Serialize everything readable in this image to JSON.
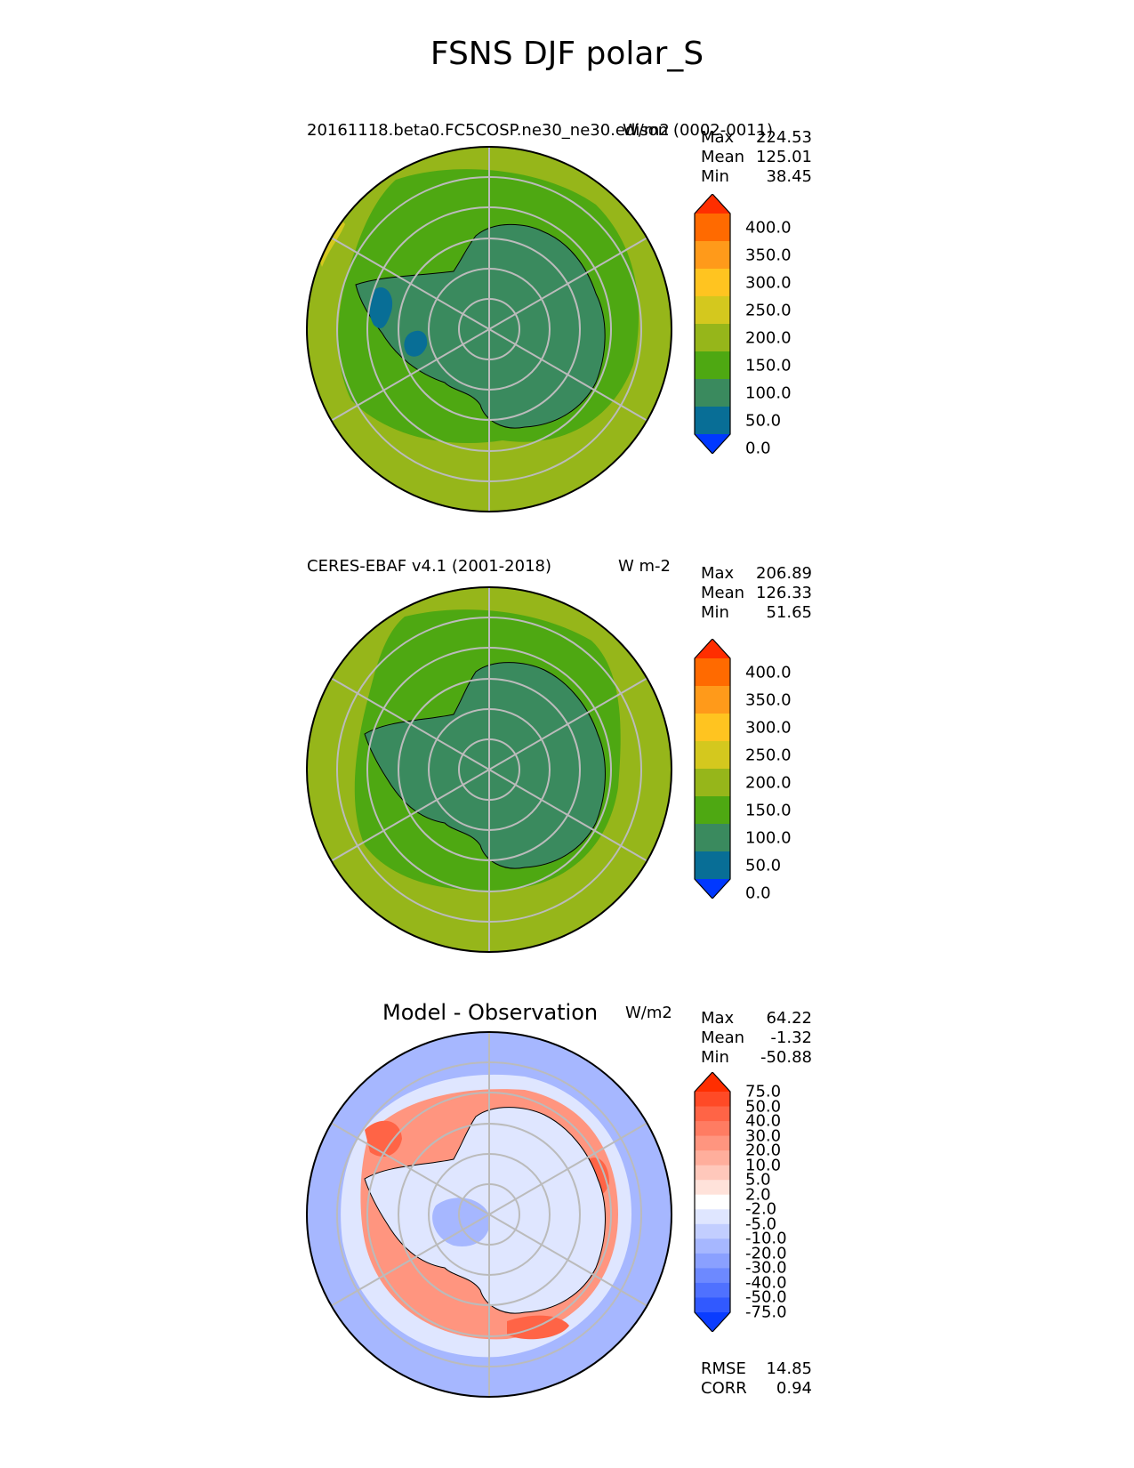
{
  "figure": {
    "title": "FSNS DJF polar_S"
  },
  "panels": [
    {
      "id": "model",
      "title": "20161118.beta0.FC5COSP.ne30_ne30.edison (0002-0011)",
      "units": "W/m2",
      "stats": {
        "max_label": "Max",
        "max": "224.53",
        "mean_label": "Mean",
        "mean": "125.01",
        "min_label": "Min",
        "min": "38.45"
      },
      "colorbar": {
        "labels": [
          "400.0",
          "350.0",
          "300.0",
          "250.0",
          "200.0",
          "150.0",
          "100.0",
          "50.0",
          "0.0"
        ],
        "colors": [
          "#ff2e00",
          "#ff6a00",
          "#ff9a1a",
          "#ffc420",
          "#d4c81e",
          "#96b61a",
          "#4ea812",
          "#3a8a5e",
          "#086e96",
          "#0038ff"
        ]
      }
    },
    {
      "id": "obs",
      "title": "CERES-EBAF v4.1 (2001-2018)",
      "units": "W m-2",
      "stats": {
        "max_label": "Max",
        "max": "206.89",
        "mean_label": "Mean",
        "mean": "126.33",
        "min_label": "Min",
        "min": "51.65"
      },
      "colorbar": {
        "labels": [
          "400.0",
          "350.0",
          "300.0",
          "250.0",
          "200.0",
          "150.0",
          "100.0",
          "50.0",
          "0.0"
        ],
        "colors": [
          "#ff2e00",
          "#ff6a00",
          "#ff9a1a",
          "#ffc420",
          "#d4c81e",
          "#96b61a",
          "#4ea812",
          "#3a8a5e",
          "#086e96",
          "#0038ff"
        ]
      }
    },
    {
      "id": "diff",
      "title": "Model - Observation",
      "units": "W/m2",
      "stats": {
        "max_label": "Max",
        "max": "64.22",
        "mean_label": "Mean",
        "mean": "-1.32",
        "min_label": "Min",
        "min": "-50.88"
      },
      "colorbar": {
        "labels": [
          "75.0",
          "50.0",
          "40.0",
          "30.0",
          "20.0",
          "10.0",
          "5.0",
          "2.0",
          "-2.0",
          "-5.0",
          "-10.0",
          "-20.0",
          "-30.0",
          "-40.0",
          "-50.0",
          "-75.0"
        ],
        "colors": [
          "#ff2e00",
          "#ff4a26",
          "#ff6446",
          "#ff7c62",
          "#ff957f",
          "#ffae9c",
          "#ffc8bb",
          "#ffe2da",
          "#ffffff",
          "#dfe6ff",
          "#c2ceff",
          "#a6b7ff",
          "#8aa0ff",
          "#6d89ff",
          "#4f71ff",
          "#3159ff",
          "#0a3cff"
        ]
      },
      "metrics": {
        "rmse_label": "RMSE",
        "rmse": "14.85",
        "corr_label": "CORR",
        "corr": "0.94"
      }
    }
  ],
  "colors": {
    "outer_mid": "#96b61a",
    "mid_band": "#4ea812",
    "land": "#3a8a5e",
    "low": "#086e96",
    "warm": "#d4c81e",
    "diff_pos": "#ff957f",
    "diff_pos_strong": "#ff6446",
    "diff_neg": "#a6b7ff",
    "diff_neg_light": "#dfe6ff",
    "grid": "#bbbbbb"
  }
}
